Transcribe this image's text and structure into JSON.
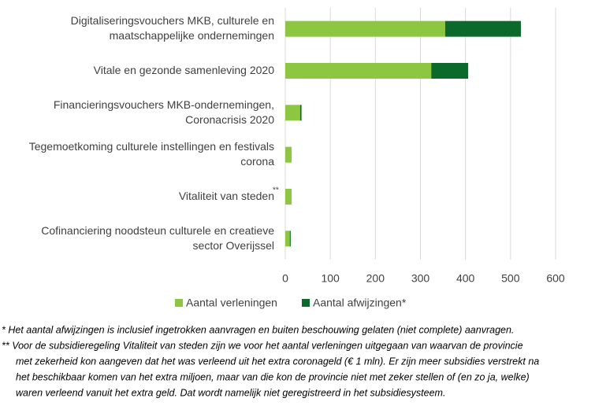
{
  "chart_data": {
    "type": "stacked-barh",
    "categories": [
      [
        "Digitaliseringsvouchers MKB, culturele en",
        "maatschappelijke ondernemingen"
      ],
      [
        "Vitale en gezonde samenleving 2020"
      ],
      [
        "Financieringsvouchers MKB-ondernemingen,",
        "Coronacrisis 2020"
      ],
      [
        "Tegemoetkoming culturele instellingen en festivals",
        "corona"
      ],
      [
        "Vitaliteit van steden"
      ],
      [
        "Cofinanciering noodsteun culturele en creatieve",
        "sector Overijssel"
      ]
    ],
    "annotations": [
      {
        "category": 4,
        "text": "**"
      }
    ],
    "series": [
      {
        "name": "Aantal verleningen",
        "color": "#8dc641",
        "values": [
          355,
          324,
          33,
          14,
          14,
          10
        ]
      },
      {
        "name": "Aantal afwijzingen*",
        "color": "#0b6a2b",
        "values": [
          168,
          82,
          3,
          0,
          0,
          2
        ]
      }
    ],
    "xlim": [
      0,
      600
    ],
    "xticks": [
      0,
      100,
      200,
      300,
      400,
      500,
      600
    ],
    "grid": true,
    "legend": "bottom",
    "footnotes": [
      [
        "* Het aantal afwijzingen is inclusief ingetrokken aanvragen en buiten beschouwing gelaten (niet complete) aanvragen."
      ],
      [
        "** Voor de subsidieregeling Vitaliteit van steden zijn we voor het aantal verleningen uitgegaan van waarvan de provincie",
        "met zekerheid kon aangeven dat het was verleend uit het extra coronageld (€ 1 mln). Er zijn meer subsidies verstrekt na",
        "het beschikbaar komen van het extra miljoen, maar van die kon de provincie niet met zeker stellen of (en zo ja, welke)",
        "waren verleend vanuit het extra geld. Dat wordt namelijk niet geregistreerd in het subsidiesysteem."
      ]
    ]
  }
}
